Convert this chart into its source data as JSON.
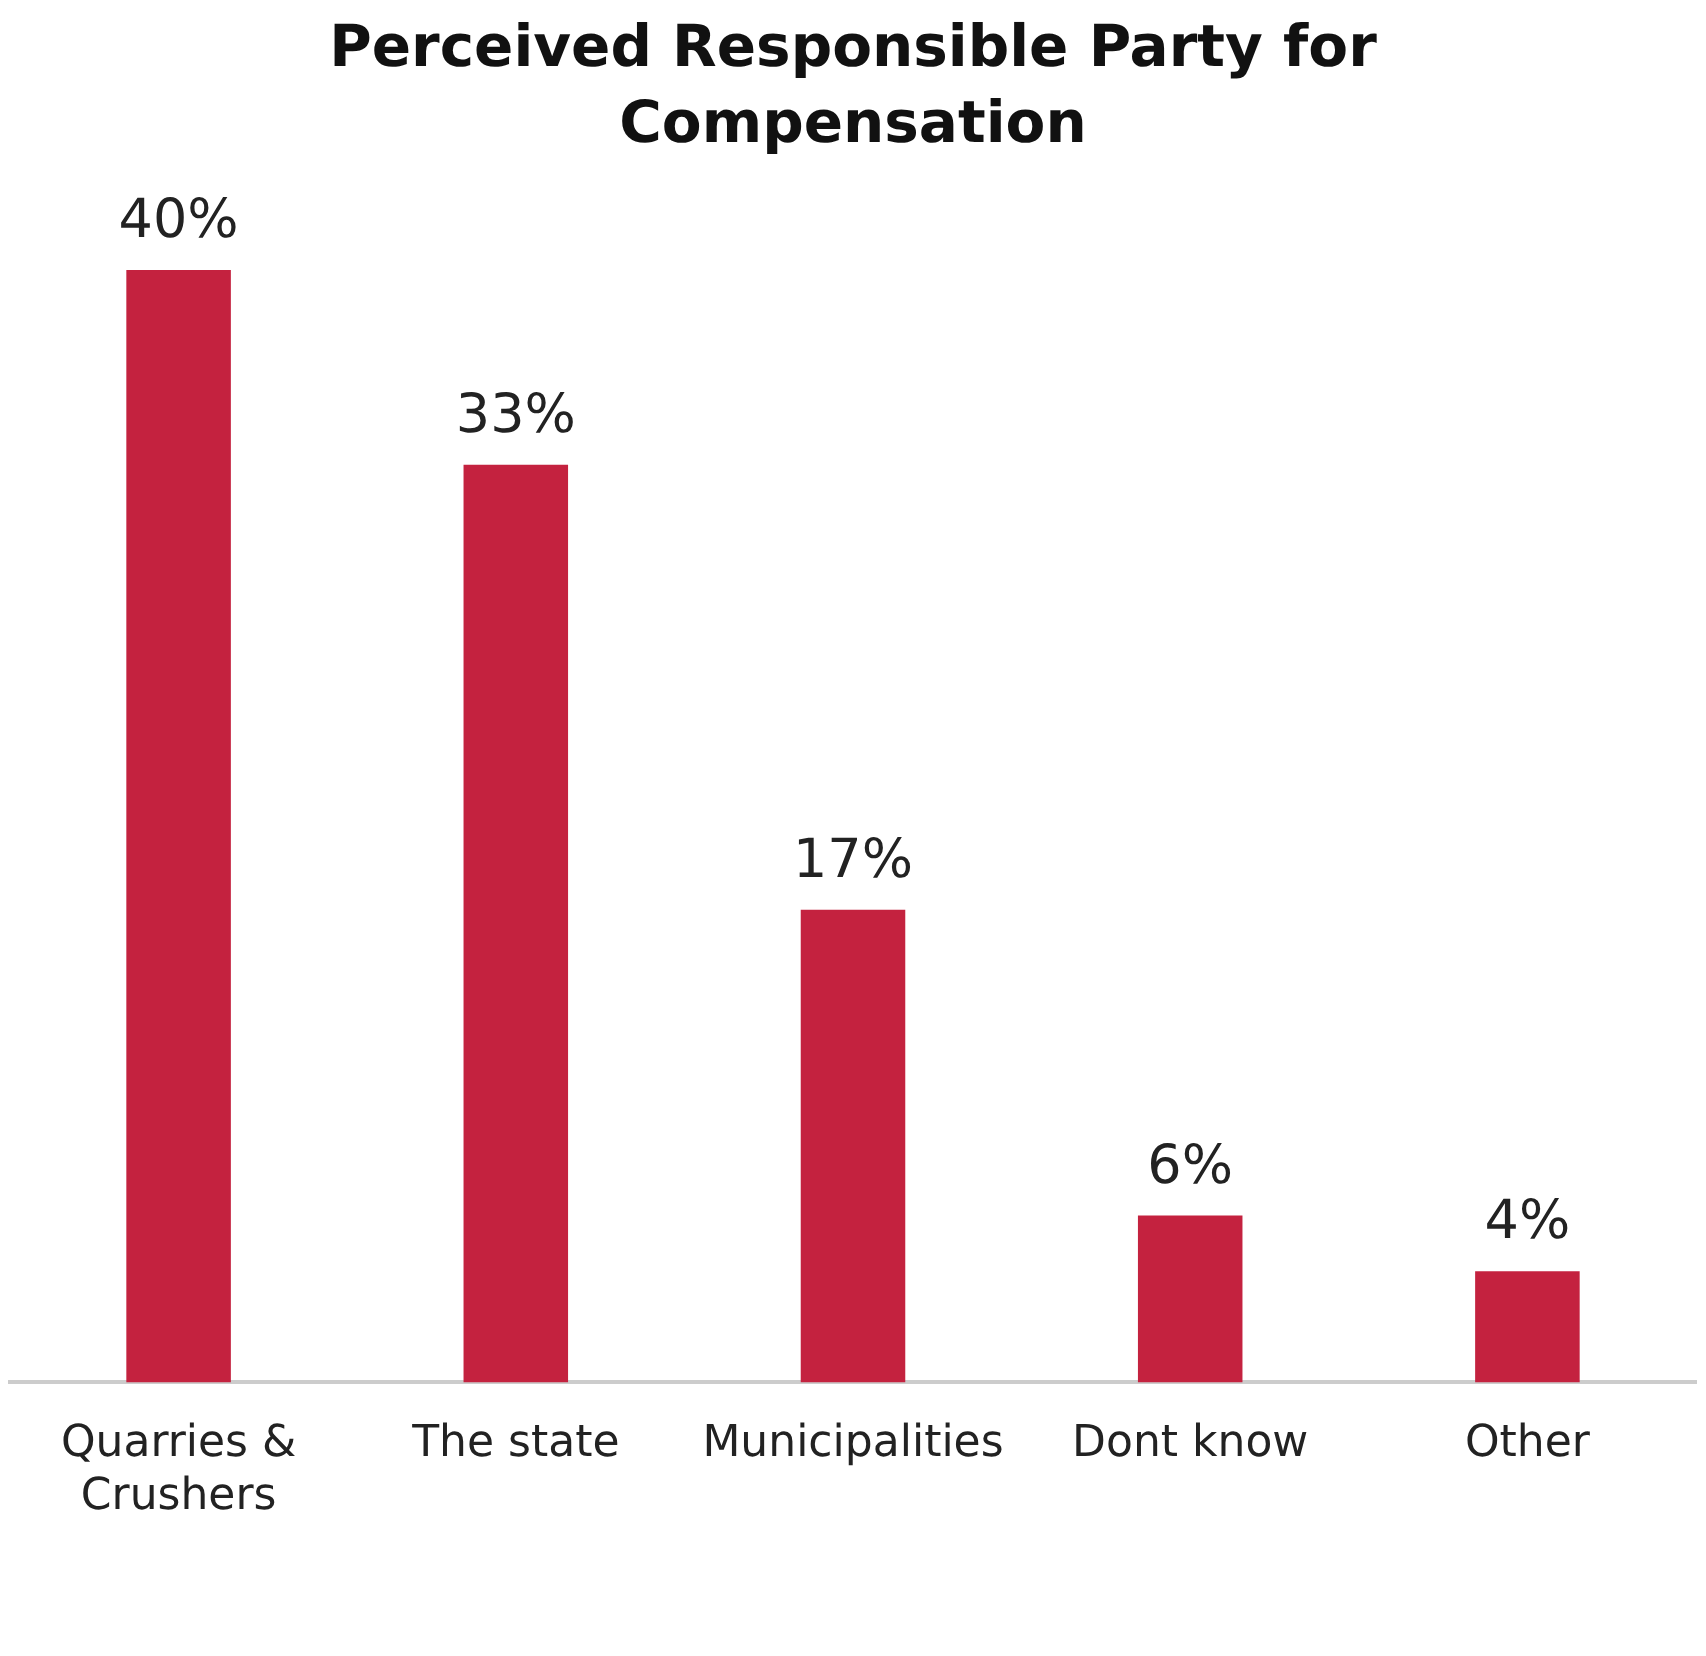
{
  "chart_data": {
    "type": "bar",
    "title": "Perceived Responsible Party for Compensation",
    "categories": [
      "Quarries & Crushers",
      "The state",
      "Municipalities",
      "Dont know",
      "Other"
    ],
    "values": [
      40,
      33,
      17,
      6,
      4
    ],
    "value_labels": [
      "40%",
      "33%",
      "17%",
      "6%",
      "4%"
    ],
    "color": "#c4223f",
    "grid": false,
    "legend": false
  }
}
